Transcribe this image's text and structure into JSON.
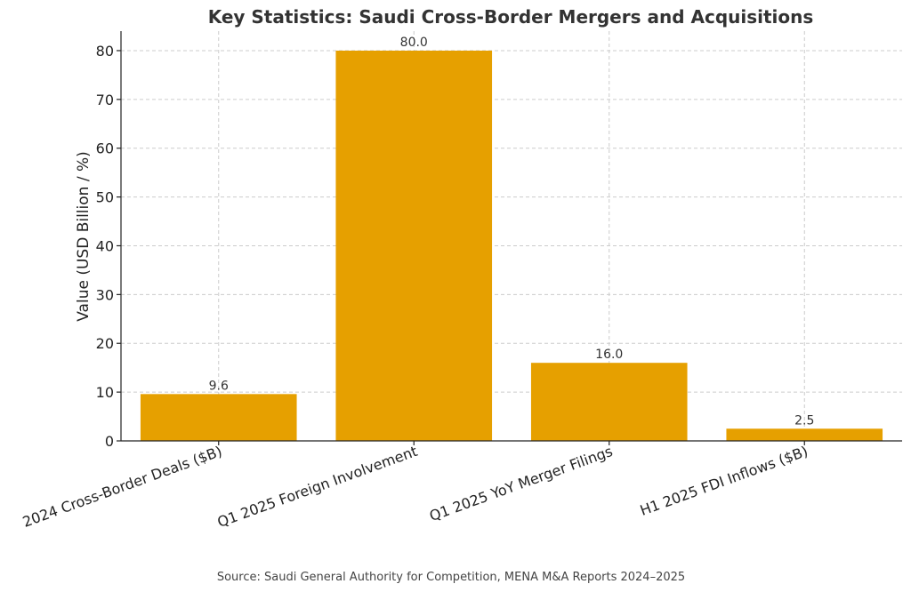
{
  "chart_data": {
    "type": "bar",
    "title": "Key Statistics: Saudi Cross-Border Mergers and Acquisitions",
    "xlabel": "",
    "ylabel": "Value (USD Billion / %)",
    "categories": [
      "2024 Cross-Border Deals ($B)",
      "Q1 2025 Foreign Involvement",
      "Q1 2025 YoY Merger Filings",
      "H1 2025 FDI Inflows ($B)"
    ],
    "values": [
      9.6,
      80.0,
      16.0,
      2.5
    ],
    "data_labels": [
      "9.6",
      "80.0",
      "16.0",
      "2.5"
    ],
    "ylim": [
      0,
      84
    ],
    "yticks": [
      0,
      10,
      20,
      30,
      40,
      50,
      60,
      70,
      80
    ],
    "grid": true,
    "bar_color": "#E6A000",
    "source": "Source: Saudi General Authority for Competition, MENA M&A Reports 2024–2025"
  }
}
